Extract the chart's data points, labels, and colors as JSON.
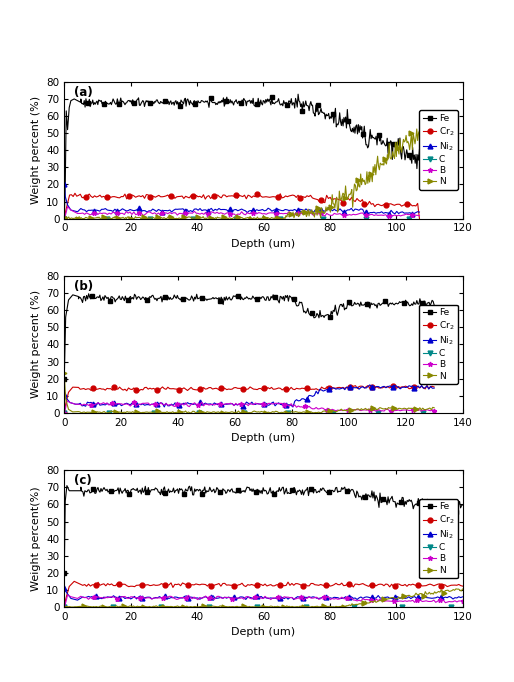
{
  "panels": [
    {
      "label": "(a)",
      "xlim": [
        0,
        120
      ],
      "xticks": [
        0,
        20,
        40,
        60,
        80,
        100,
        120
      ],
      "ylabel": "Weight percent (%)",
      "xlabel": "Depth (um)"
    },
    {
      "label": "(b)",
      "xlim": [
        0,
        140
      ],
      "xticks": [
        0,
        20,
        40,
        60,
        80,
        100,
        120,
        140
      ],
      "ylabel": "Weight percent (%)",
      "xlabel": "Depth (um)"
    },
    {
      "label": "(c)",
      "xlim": [
        0,
        120
      ],
      "xticks": [
        0,
        20,
        40,
        60,
        80,
        100,
        120
      ],
      "ylabel": "Weight percent(%)",
      "xlabel": "Depth (um)"
    }
  ],
  "ylim": [
    0,
    80
  ],
  "yticks": [
    0,
    10,
    20,
    30,
    40,
    50,
    60,
    70,
    80
  ],
  "colors": {
    "Fe": "#000000",
    "Cr2": "#cc0000",
    "Ni2": "#0000cc",
    "C": "#008888",
    "B": "#cc00cc",
    "N": "#888800"
  }
}
